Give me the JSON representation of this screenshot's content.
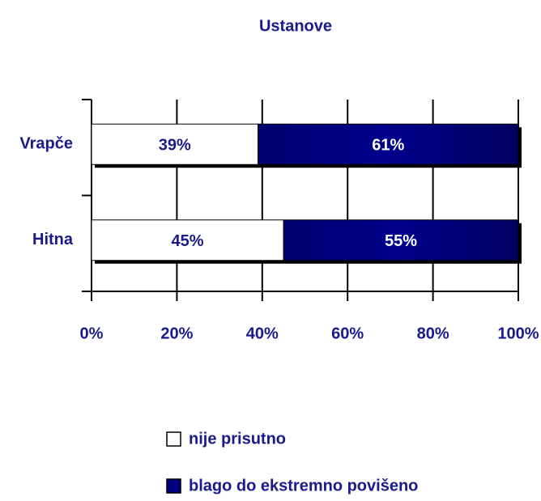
{
  "chart_data": {
    "type": "stacked_bar_horizontal",
    "title": "Ustanove",
    "categories": [
      "Vrapče",
      "Hitna"
    ],
    "series": [
      {
        "name": "nije prisutno",
        "color": "#ffffff",
        "values": [
          39,
          45
        ],
        "value_labels": [
          "39%",
          "45%"
        ]
      },
      {
        "name": "blago do ekstremno povišeno",
        "color": "#000080",
        "values": [
          61,
          55
        ],
        "value_labels": [
          "61%",
          "55%"
        ]
      }
    ],
    "xlim": [
      0,
      100
    ],
    "xticks": [
      {
        "value": 0,
        "label": "0%"
      },
      {
        "value": 20,
        "label": "20%"
      },
      {
        "value": 40,
        "label": "40%"
      },
      {
        "value": 60,
        "label": "60%"
      },
      {
        "value": 80,
        "label": "80%"
      },
      {
        "value": 100,
        "label": "100%"
      }
    ],
    "grid": true,
    "legend": "bottom"
  }
}
